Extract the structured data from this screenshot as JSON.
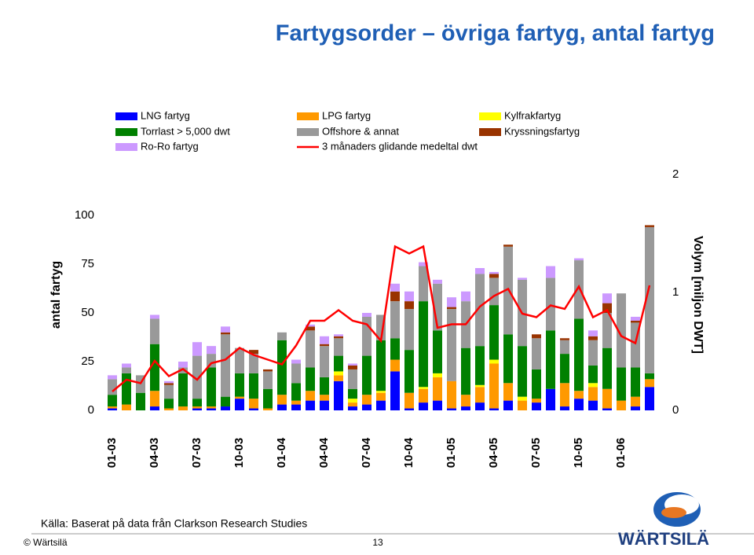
{
  "header": {
    "title": "Fartygsorder – övriga fartyg, antal fartyg"
  },
  "chart_data": {
    "type": "bar",
    "stacked": true,
    "ylabel": "antal fartyg",
    "y2label": "Volym [miljon DWT]",
    "categories": [
      "01-03",
      null,
      null,
      "04-03",
      null,
      null,
      "07-03",
      null,
      null,
      "10-03",
      null,
      null,
      "01-04",
      null,
      null,
      "04-04",
      null,
      null,
      "07-04",
      null,
      null,
      "10-04",
      null,
      null,
      "01-05",
      null,
      null,
      "04-05",
      null,
      null,
      "07-05",
      null,
      null,
      "10-05",
      null,
      null,
      "01-06",
      null,
      null
    ],
    "ylim": [
      0,
      121
    ],
    "yticks": [
      0,
      25,
      50,
      75,
      100
    ],
    "y2lim": [
      0,
      2
    ],
    "y2ticks": [
      0,
      1,
      2
    ],
    "grid": false,
    "series": [
      {
        "name": "LNG fartyg",
        "color": "#0000ff",
        "values": [
          1,
          0,
          0,
          2,
          0,
          0,
          1,
          1,
          2,
          6,
          1,
          0,
          3,
          3,
          5,
          5,
          15,
          2,
          3,
          5,
          20,
          1,
          4,
          5,
          1,
          2,
          4,
          1,
          5,
          0,
          4,
          11,
          2,
          6,
          5,
          1,
          0,
          2,
          12
        ]
      },
      {
        "name": "LPG fartyg",
        "color": "#ff9900",
        "values": [
          1,
          3,
          0,
          8,
          1,
          2,
          1,
          1,
          0,
          1,
          5,
          1,
          5,
          2,
          5,
          3,
          3,
          2,
          5,
          4,
          6,
          8,
          7,
          12,
          14,
          6,
          8,
          23,
          9,
          5,
          2,
          0,
          12,
          4,
          7,
          10,
          5,
          5,
          4
        ]
      },
      {
        "name": "Kylfrakfartyg",
        "color": "#ffff00",
        "values": [
          0,
          0,
          0,
          0,
          0,
          0,
          0,
          0,
          0,
          0,
          0,
          0,
          0,
          0,
          0,
          0,
          2,
          2,
          0,
          1,
          0,
          0,
          1,
          2,
          0,
          0,
          1,
          2,
          0,
          2,
          0,
          0,
          0,
          0,
          2,
          0,
          0,
          0,
          0
        ]
      },
      {
        "name": "Torrlast > 5,000 dwt",
        "color": "#008000",
        "values": [
          6,
          16,
          9,
          24,
          5,
          17,
          4,
          20,
          5,
          12,
          13,
          10,
          28,
          9,
          12,
          9,
          8,
          5,
          20,
          26,
          11,
          22,
          44,
          22,
          0,
          24,
          20,
          28,
          25,
          26,
          15,
          30,
          15,
          37,
          9,
          21,
          17,
          15,
          3
        ]
      },
      {
        "name": "Offshore & annat",
        "color": "#999999",
        "values": [
          8,
          3,
          9,
          13,
          7,
          3,
          22,
          7,
          32,
          13,
          10,
          9,
          4,
          10,
          19,
          16,
          9,
          10,
          20,
          13,
          19,
          21,
          18,
          24,
          37,
          24,
          37,
          14,
          45,
          34,
          16,
          27,
          7,
          30,
          13,
          18,
          38,
          23,
          75
        ]
      },
      {
        "name": "Kryssningsfartyg",
        "color": "#993300",
        "values": [
          0,
          0,
          0,
          0,
          1,
          0,
          0,
          0,
          1,
          0,
          2,
          1,
          0,
          0,
          2,
          1,
          1,
          2,
          0,
          0,
          5,
          4,
          0,
          0,
          1,
          0,
          0,
          2,
          1,
          0,
          2,
          0,
          1,
          0,
          2,
          5,
          0,
          1,
          1
        ]
      },
      {
        "name": "Ro-Ro fartyg",
        "color": "#cc99ff",
        "values": [
          2,
          2,
          0,
          2,
          1,
          3,
          7,
          4,
          3,
          0,
          0,
          0,
          0,
          2,
          1,
          4,
          1,
          1,
          2,
          0,
          4,
          5,
          2,
          2,
          5,
          5,
          3,
          1,
          0,
          1,
          0,
          6,
          0,
          1,
          3,
          5,
          0,
          2,
          0
        ]
      },
      {
        "name": "3 månaders glidande medeltal dwt",
        "color": "#ff0000",
        "axis": "y2",
        "type": "line",
        "values": [
          0.16,
          0.26,
          0.23,
          0.42,
          0.29,
          0.35,
          0.26,
          0.4,
          0.43,
          0.53,
          0.47,
          0.43,
          0.39,
          0.55,
          0.76,
          0.76,
          0.85,
          0.76,
          0.73,
          0.59,
          1.39,
          1.33,
          1.39,
          0.7,
          0.73,
          0.73,
          0.88,
          0.97,
          1.03,
          0.82,
          0.79,
          0.89,
          0.86,
          1.05,
          0.79,
          0.85,
          0.63,
          0.57,
          1.06
        ]
      }
    ]
  },
  "footer": {
    "source": "Källa: Baserat på data från Clarkson Research Studies",
    "copyright": "© Wärtsilä",
    "page": "13",
    "logo": "WÄRTSILÄ"
  }
}
